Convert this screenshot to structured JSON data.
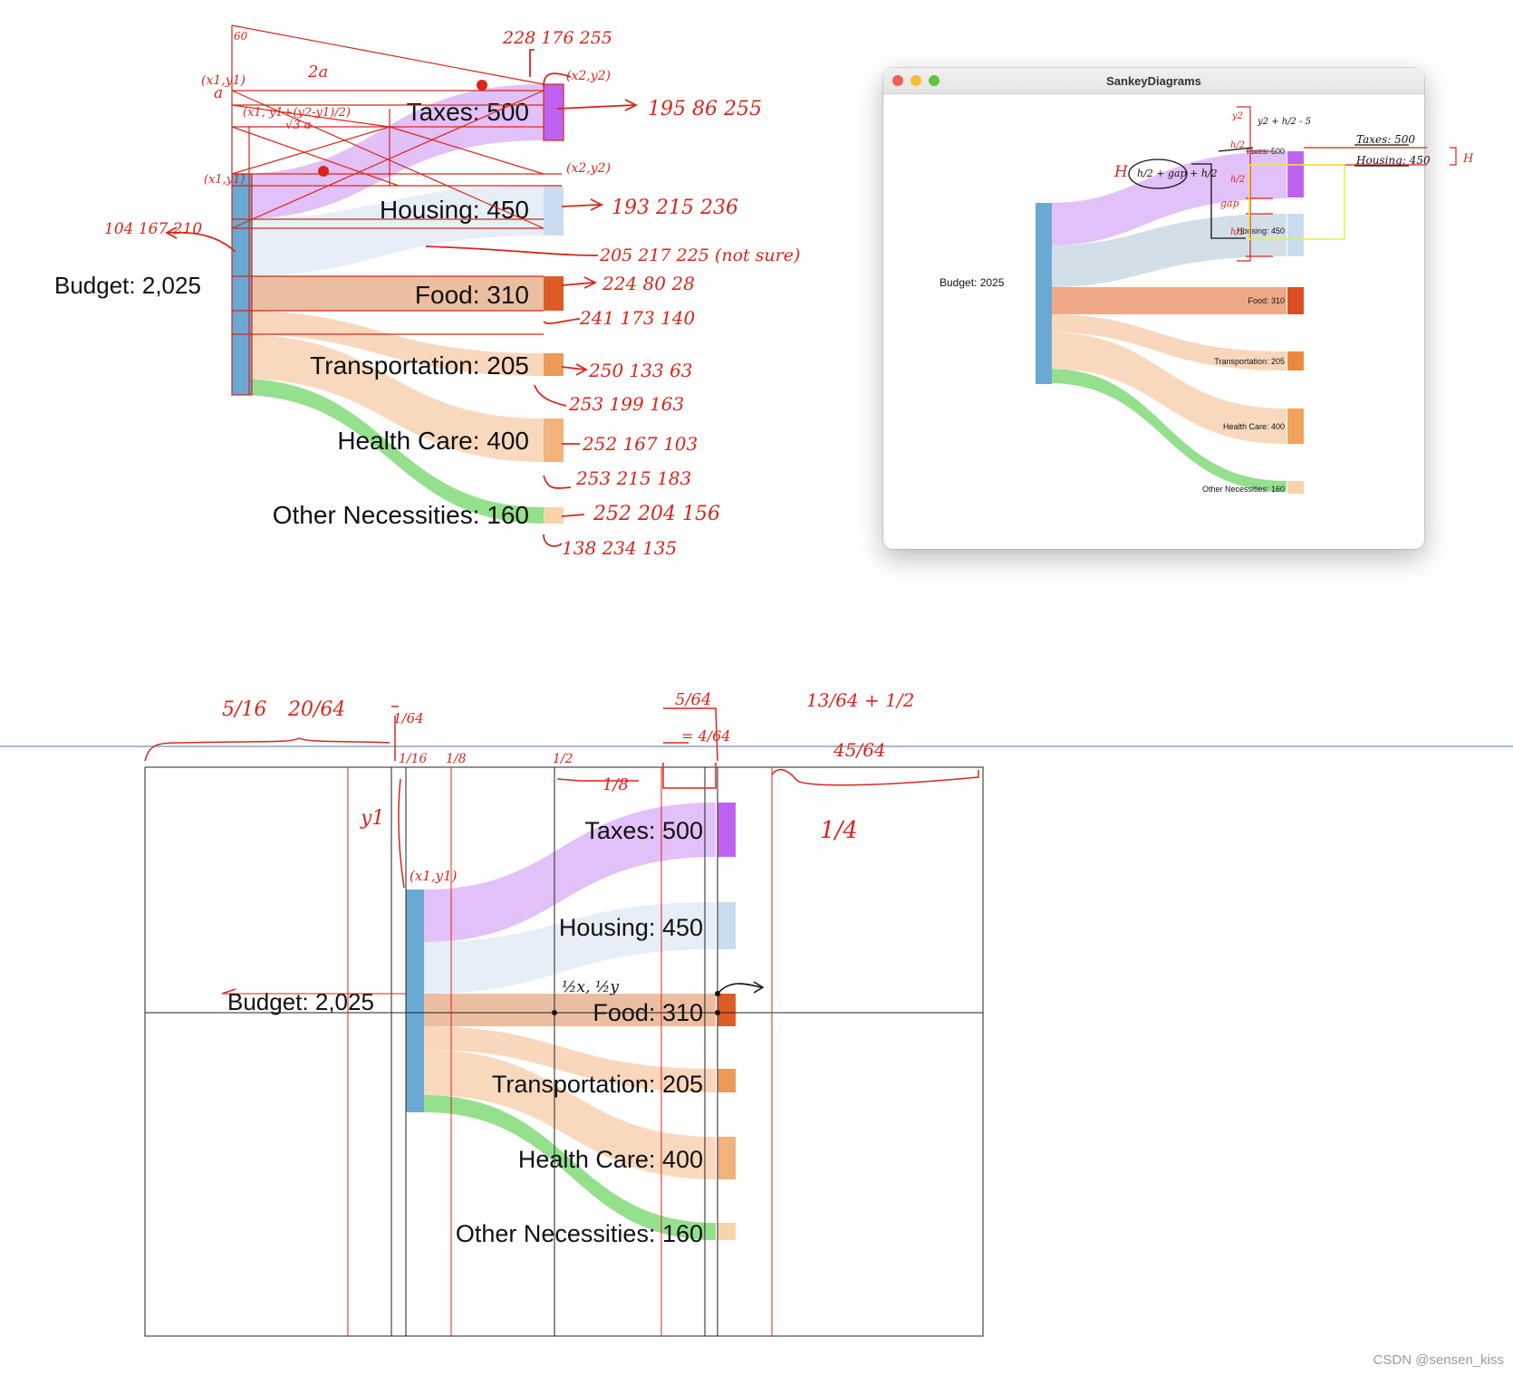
{
  "window": {
    "title": "SankeyDiagrams",
    "traffic_lights": [
      "#ee5f57",
      "#f5bd2f",
      "#5fc53f"
    ]
  },
  "diagram_a": {
    "source": "Budget: 2,025",
    "targets": [
      "Taxes: 500",
      "Housing: 450",
      "Food: 310",
      "Transportation: 205",
      "Health Care: 400",
      "Other Necessities: 160"
    ]
  },
  "diagram_b": {
    "source": "Budget: 2025",
    "targets": [
      "Taxes: 500",
      "Housing: 450",
      "Food: 310",
      "Transportation: 205",
      "Health Care: 400",
      "Other Necessities: 160"
    ]
  },
  "diagram_c": {
    "source": "Budget: 2,025",
    "targets": [
      "Taxes: 500",
      "Housing: 450",
      "Food: 310",
      "Transportation: 205",
      "Health Care: 400",
      "Other Necessities: 160"
    ]
  },
  "colors": {
    "source": "#6aa9d4",
    "taxes_node": "#c062f0",
    "taxes_flow": "#e2c0f8",
    "housing_node": "#c9dcf0",
    "housing_flow": "#e6eef7",
    "food_node": "#dc5c25",
    "food_flow": "#ecbea1",
    "transport_node": "#eb9a5a",
    "transport_flow": "#f9d7bd",
    "health_node": "#f2b27c",
    "health_flow": "#f9d9be",
    "other_node": "#f8d4aa",
    "other_flow": "#94e08d"
  },
  "annotations": {
    "rgb_taxes_top": "228 176 255",
    "rgb_taxes": "195 86 255",
    "rgb_housing": "193 215 236",
    "rgb_housing_flow": "205 217 225 (not sure)",
    "rgb_budget": "104 167 210",
    "rgb_food": "224 80 28",
    "rgb_food_flow": "241 173 140",
    "rgb_transport": "250 133 63",
    "rgb_transport_flow": "253 199 163",
    "rgb_health": "252 167 103",
    "rgb_health_flow": "253 215 183",
    "rgb_other": "252 204 156",
    "rgb_other_flow": "138 234 135",
    "geo_2a": "2a",
    "geo_a": "a",
    "geo_60": "60",
    "geo_x1y1": "(x1,y1)",
    "geo_x2y2": "(x2,y2)",
    "geo_mid": "(x1, y1+(y2-y1)/2)",
    "geo_sqrt": "√3 a",
    "win_h": "H",
    "win_formula": "h/2 + gap + h/2",
    "win_gap": "gap",
    "win_y2": "y2",
    "win_h2": "h/2",
    "win_y2_expr": "y2 + h/2 - 5",
    "win_taxes_note": "Taxes: 500",
    "win_housing_note": "Housing: 450",
    "frac_5_16": "5/16",
    "frac_20_64": "20/64",
    "frac_1_64": "1/64",
    "frac_1_16": "1/16",
    "frac_1_8": "1/8",
    "frac_1_2": "1/2",
    "frac_5_64": "5/64",
    "frac_4_64": "= 4/64",
    "frac_13_64": "13/64 + 1/2",
    "frac_45_64": "45/64",
    "frac_1_4": "1/4",
    "frac_y1": "y1",
    "frac_half_xy": "½x, ½y",
    "frac_xy": "(x1,y1)"
  },
  "watermark": "CSDN @sensen_kiss"
}
